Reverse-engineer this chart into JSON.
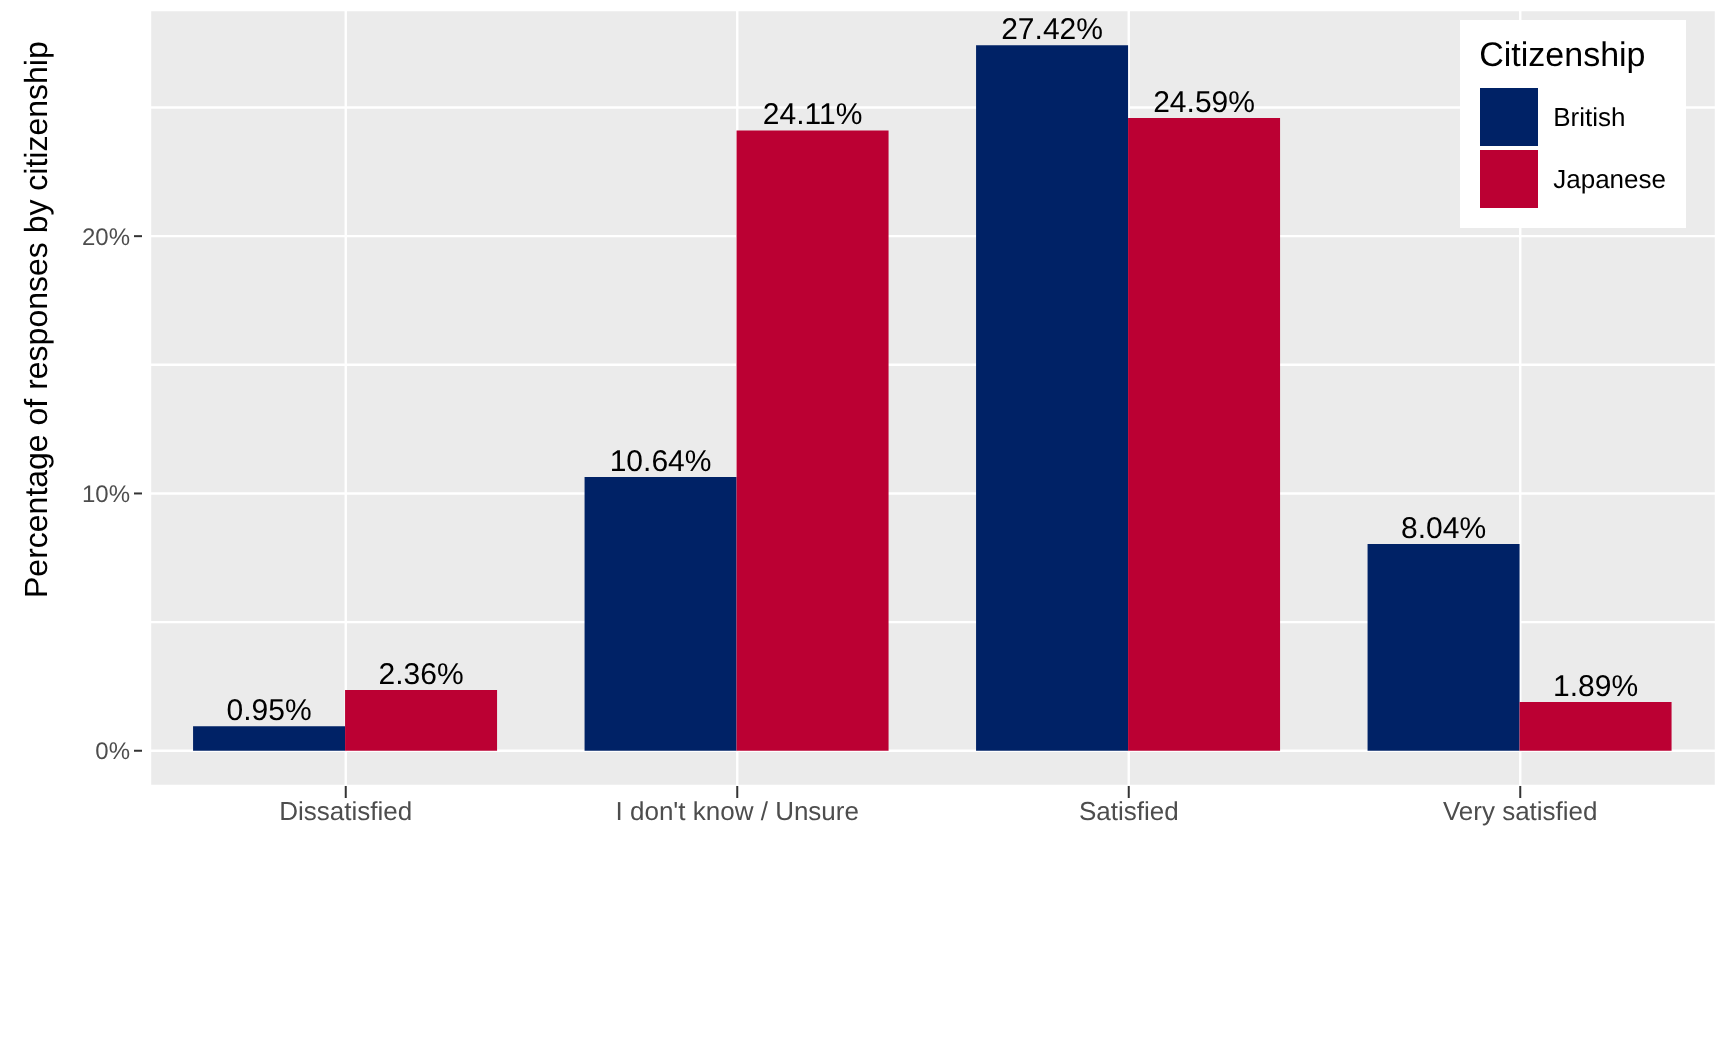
{
  "chart_data": {
    "type": "bar",
    "ylabel": "Percentage of responses by citizenship",
    "legend_title": "Citizenship",
    "legend": "top right",
    "grid": true,
    "categories": [
      "Dissatisfied",
      "I don't know / Unsure",
      "Satisfied",
      "Very satisfied"
    ],
    "series": [
      {
        "name": "British",
        "color": "#002266",
        "values": [
          0.95,
          10.64,
          27.42,
          8.04
        ],
        "value_labels": [
          "0.95%",
          "10.64%",
          "27.42%",
          "8.04%"
        ]
      },
      {
        "name": "Japanese",
        "color": "#bb0033",
        "values": [
          2.36,
          24.11,
          24.59,
          1.89
        ],
        "value_labels": [
          "2.36%",
          "24.11%",
          "24.59%",
          "1.89%"
        ]
      }
    ],
    "ylim": [
      -1.37,
      28.79
    ],
    "yticks": [
      {
        "value": 0,
        "label": "0%"
      },
      {
        "value": 5,
        "label": null
      },
      {
        "value": 10,
        "label": "10%"
      },
      {
        "value": 15,
        "label": null
      },
      {
        "value": 20,
        "label": "20%"
      },
      {
        "value": 25,
        "label": null
      }
    ]
  }
}
